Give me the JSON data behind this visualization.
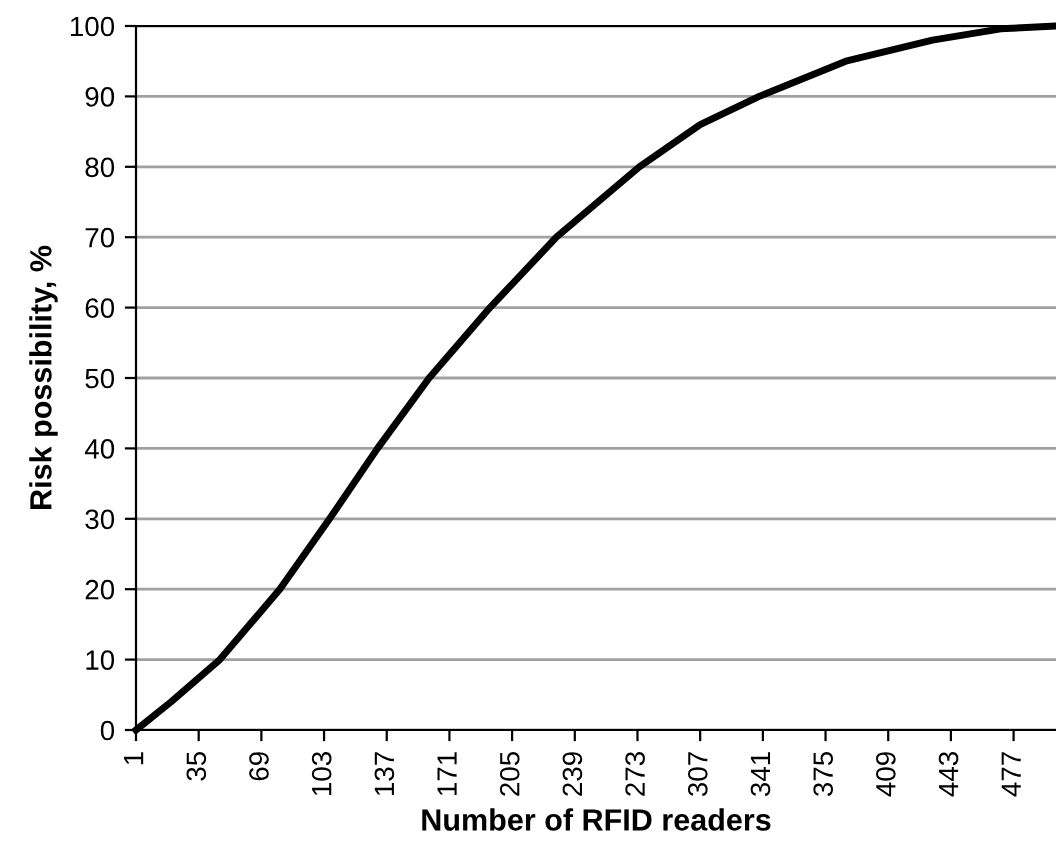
{
  "chart_data": {
    "type": "line",
    "xlabel": "Number of RFID readers",
    "ylabel": "Risk possibility, %",
    "x": [
      1,
      20,
      46.5,
      79,
      106,
      132,
      160,
      193,
      229,
      274,
      307,
      339,
      386,
      433,
      470,
      500
    ],
    "series": [
      {
        "color": "#000000",
        "values": [
          0,
          4,
          10,
          20,
          30,
          40,
          50,
          60,
          70,
          80,
          86,
          90,
          95,
          98,
          99.6,
          100
        ]
      }
    ],
    "xlim": [
      1,
      500
    ],
    "xticks": [
      1,
      35,
      69,
      103,
      137,
      171,
      205,
      239,
      273,
      307,
      341,
      375,
      409,
      443,
      477
    ],
    "ylim": [
      0,
      100
    ],
    "yticks": [
      0,
      10,
      20,
      30,
      40,
      50,
      60,
      70,
      80,
      90,
      100
    ],
    "grid": "y",
    "marker": "none",
    "line_style": "solid"
  }
}
